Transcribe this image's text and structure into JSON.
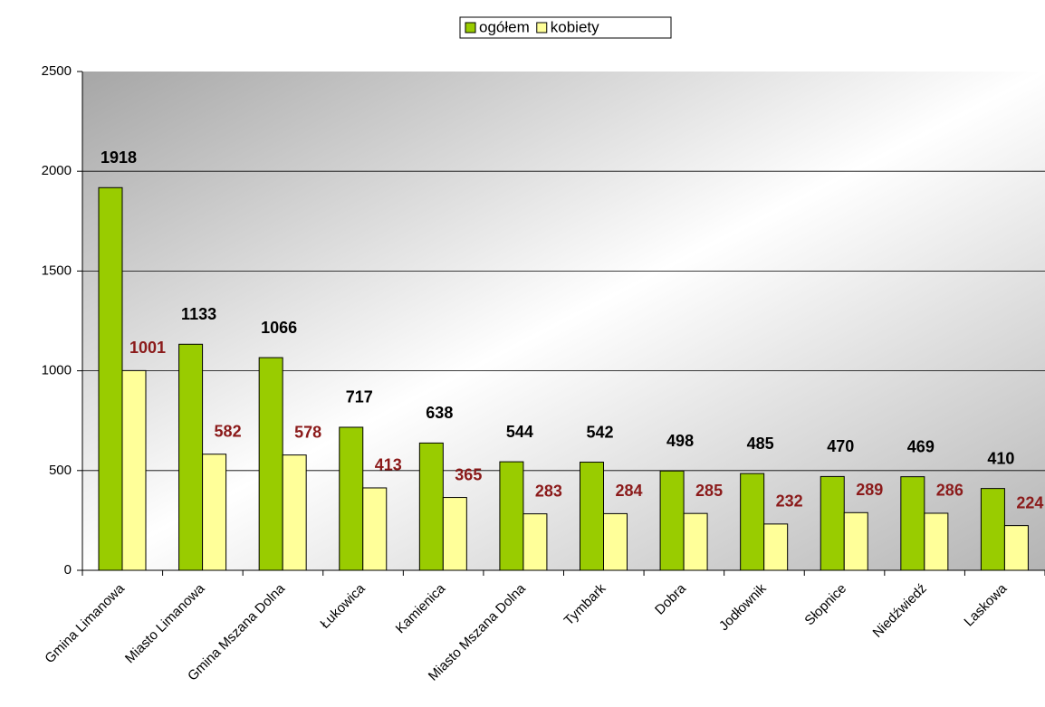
{
  "chart_data": {
    "type": "bar",
    "categories": [
      "Gmina Limanowa",
      "Miasto Limanowa",
      "Gmina Mszana Dolna",
      "Łukowica",
      "Kamienica",
      "Miasto Mszana Dolna",
      "Tymbark",
      "Dobra",
      "Jodłownik",
      "Słopnice",
      "Niedźwiedź",
      "Laskowa"
    ],
    "series": [
      {
        "name": "ogółem",
        "color": "#99cc00",
        "label_color": "#000000",
        "values": [
          1918,
          1133,
          1066,
          717,
          638,
          544,
          542,
          498,
          485,
          470,
          469,
          410
        ]
      },
      {
        "name": "kobiety",
        "color": "#ffff99",
        "label_color": "#8b1a1a",
        "values": [
          1001,
          582,
          578,
          413,
          365,
          283,
          284,
          285,
          232,
          289,
          286,
          224
        ]
      }
    ],
    "ylim": [
      0,
      2500
    ],
    "yticks": [
      0,
      500,
      1000,
      1500,
      2000,
      2500
    ],
    "grid": true,
    "legend": "top"
  }
}
